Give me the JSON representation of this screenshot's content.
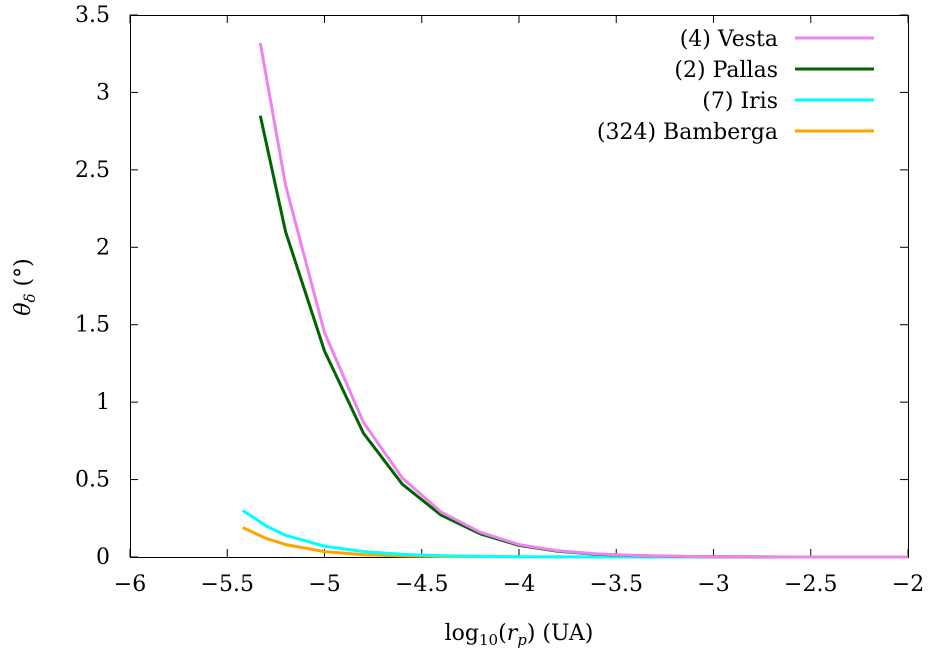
{
  "chart_data": {
    "type": "line",
    "xlabel": "log10(rp) (UA)",
    "ylabel": "θδ (°)",
    "xlim": [
      -6,
      -2
    ],
    "ylim": [
      0,
      3.5
    ],
    "xticks": [
      -6,
      -5.5,
      -5,
      -4.5,
      -4,
      -3.5,
      -3,
      -2.5,
      -2
    ],
    "yticks": [
      0,
      0.5,
      1,
      1.5,
      2,
      2.5,
      3,
      3.5
    ],
    "xtick_labels": [
      "−6",
      "−5.5",
      "−5",
      "−4.5",
      "−4",
      "−3.5",
      "−3",
      "−2.5",
      "−2"
    ],
    "ytick_labels": [
      "0",
      "0.5",
      "1",
      "1.5",
      "2",
      "2.5",
      "3",
      "3.5"
    ],
    "grid": false,
    "legend_position": "top-right",
    "series": [
      {
        "name": "(4) Vesta",
        "color": "#ee82ee",
        "x": [
          -5.33,
          -5.2,
          -5.0,
          -4.8,
          -4.6,
          -4.4,
          -4.2,
          -4.0,
          -3.8,
          -3.6,
          -3.4,
          -3.2,
          -3.0,
          -2.6,
          -2.0
        ],
        "y": [
          3.32,
          2.4,
          1.45,
          0.87,
          0.51,
          0.29,
          0.16,
          0.08,
          0.04,
          0.02,
          0.01,
          0.005,
          0.002,
          0.0,
          0.0
        ]
      },
      {
        "name": "(2) Pallas",
        "color": "#006400",
        "x": [
          -5.33,
          -5.2,
          -5.0,
          -4.8,
          -4.6,
          -4.4,
          -4.2,
          -4.0,
          -3.8,
          -3.6,
          -3.4,
          -3.2,
          -3.0,
          -2.6,
          -2.0
        ],
        "y": [
          2.85,
          2.1,
          1.33,
          0.8,
          0.47,
          0.27,
          0.15,
          0.075,
          0.037,
          0.018,
          0.009,
          0.004,
          0.002,
          0.0,
          0.0
        ]
      },
      {
        "name": "(7) Iris",
        "color": "#00ffff",
        "x": [
          -5.42,
          -5.3,
          -5.2,
          -5.0,
          -4.8,
          -4.6,
          -4.4,
          -4.2,
          -4.0,
          -3.8,
          -3.5,
          -3.0,
          -2.0
        ],
        "y": [
          0.3,
          0.2,
          0.14,
          0.07,
          0.035,
          0.017,
          0.008,
          0.004,
          0.002,
          0.001,
          0.0,
          0.0,
          0.0
        ]
      },
      {
        "name": "(324) Bamberga",
        "color": "#ffa500",
        "x": [
          -5.42,
          -5.3,
          -5.2,
          -5.0,
          -4.8,
          -4.6,
          -4.4,
          -4.2,
          -4.0,
          -3.8,
          -3.5,
          -3.0,
          -2.0
        ],
        "y": [
          0.19,
          0.12,
          0.08,
          0.035,
          0.015,
          0.007,
          0.003,
          0.0015,
          0.0007,
          0.0,
          0.0,
          0.0,
          0.0
        ]
      }
    ]
  }
}
